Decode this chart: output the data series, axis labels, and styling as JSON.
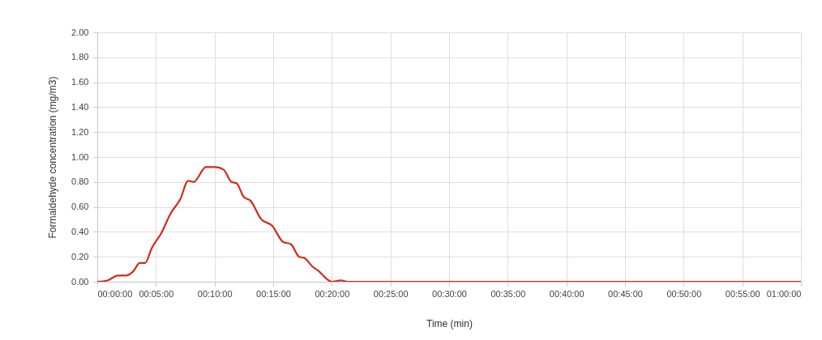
{
  "chart_data": {
    "type": "line",
    "xlabel": "Time (min)",
    "ylabel": "Formaldehyde concentration (mg/m3)",
    "x": [
      0,
      0.85,
      1.77,
      2.47,
      3.04,
      3.62,
      4.08,
      4.65,
      5.46,
      6.27,
      7.07,
      7.76,
      8.23,
      9.26,
      10.07,
      10.76,
      11.45,
      11.87,
      12.49,
      13.06,
      13.99,
      14.91,
      15.83,
      16.52,
      17.21,
      17.67,
      18.36,
      18.82,
      19.75,
      19.98,
      20.78,
      21.36,
      30,
      40,
      50,
      60
    ],
    "series": [
      {
        "color": "#d42a1a",
        "values": [
          0,
          0.01,
          0.05,
          0.05,
          0.08,
          0.15,
          0.15,
          0.27,
          0.39,
          0.55,
          0.66,
          0.81,
          0.8,
          0.92,
          0.92,
          0.9,
          0.8,
          0.79,
          0.68,
          0.65,
          0.5,
          0.45,
          0.32,
          0.3,
          0.2,
          0.19,
          0.12,
          0.09,
          0.01,
          0,
          0.01,
          0,
          0,
          0,
          0,
          0
        ]
      }
    ],
    "xlim": [
      0,
      60
    ],
    "xticks": [
      {
        "value": 0,
        "label": "00:00:00"
      },
      {
        "value": 5,
        "label": "00:05:00"
      },
      {
        "value": 10,
        "label": "00:10:00"
      },
      {
        "value": 15,
        "label": "00:15:00"
      },
      {
        "value": 20,
        "label": "00:20:00"
      },
      {
        "value": 25,
        "label": "00:25:00"
      },
      {
        "value": 30,
        "label": "00:30:00"
      },
      {
        "value": 35,
        "label": "00:35:00"
      },
      {
        "value": 40,
        "label": "00:40:00"
      },
      {
        "value": 45,
        "label": "00:45:00"
      },
      {
        "value": 50,
        "label": "00:50:00"
      },
      {
        "value": 55,
        "label": "00:55:00"
      },
      {
        "value": 60,
        "label": "01:00:00"
      }
    ],
    "ylim": [
      0,
      2
    ],
    "yticks": [
      {
        "value": 0,
        "label": "0.00"
      },
      {
        "value": 0.2,
        "label": "0.20"
      },
      {
        "value": 0.4,
        "label": "0.40"
      },
      {
        "value": 0.6,
        "label": "0.60"
      },
      {
        "value": 0.8,
        "label": "0.80"
      },
      {
        "value": 1,
        "label": "1.00"
      },
      {
        "value": 1.2,
        "label": "1.20"
      },
      {
        "value": 1.4,
        "label": "1.40"
      },
      {
        "value": 1.6,
        "label": "1.60"
      },
      {
        "value": 1.8,
        "label": "1.80"
      },
      {
        "value": 2,
        "label": "2.00"
      }
    ],
    "grid": true,
    "marker": "none",
    "line_style": "solid"
  }
}
